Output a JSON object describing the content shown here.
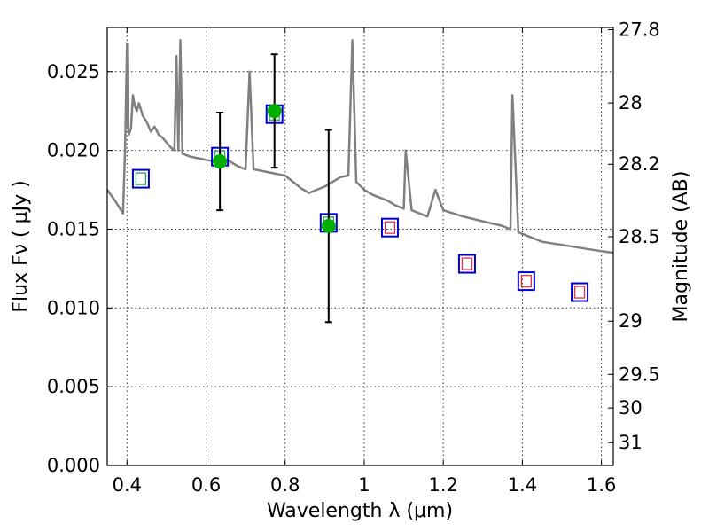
{
  "chart_data": {
    "type": "scatter",
    "xlabel": "Wavelength  λ (μm)",
    "ylabel": "Flux  Fν  ( μJy )",
    "ylabel_right": "Magnitude (AB)",
    "xlim": [
      0.35,
      1.63
    ],
    "ylim": [
      0.0,
      0.0278
    ],
    "x_ticks": [
      0.4,
      0.6,
      0.8,
      1.0,
      1.2,
      1.4,
      1.6
    ],
    "x_tick_labels": [
      "0.4",
      "0.6",
      "0.8",
      "1",
      "1.2",
      "1.4",
      "1.6"
    ],
    "y_ticks": [
      0.0,
      0.005,
      0.01,
      0.015,
      0.02,
      0.025
    ],
    "y_tick_labels": [
      "0.000",
      "0.005",
      "0.010",
      "0.015",
      "0.020",
      "0.025"
    ],
    "right_ticks": [
      {
        "flux": 0.02766,
        "label": "27.8"
      },
      {
        "flux": 0.02301,
        "label": "28"
      },
      {
        "flux": 0.01912,
        "label": "28.2"
      },
      {
        "flux": 0.01452,
        "label": "28.5"
      },
      {
        "flux": 0.00916,
        "label": "29"
      },
      {
        "flux": 0.00578,
        "label": "29.5"
      },
      {
        "flux": 0.00365,
        "label": "30"
      },
      {
        "flux": 0.00145,
        "label": "31"
      }
    ],
    "grid": true,
    "colors": {
      "spectrum": "#808080",
      "observed": "#00b000",
      "model_box": "#0000cc",
      "inner_box_green": "#30a060",
      "inner_box_red": "#e0304a",
      "errorbar": "#000000"
    },
    "series": [
      {
        "kind": "spectrum",
        "x": [
          0.35,
          0.37,
          0.39,
          0.395,
          0.4,
          0.402,
          0.405,
          0.41,
          0.415,
          0.42,
          0.425,
          0.43,
          0.44,
          0.45,
          0.46,
          0.47,
          0.48,
          0.49,
          0.5,
          0.51,
          0.52,
          0.525,
          0.53,
          0.535,
          0.54,
          0.55,
          0.56,
          0.58,
          0.6,
          0.62,
          0.64,
          0.65,
          0.66,
          0.68,
          0.7,
          0.71,
          0.72,
          0.74,
          0.76,
          0.78,
          0.8,
          0.82,
          0.84,
          0.86,
          0.88,
          0.9,
          0.92,
          0.94,
          0.96,
          0.97,
          0.98,
          1.0,
          1.02,
          1.04,
          1.06,
          1.08,
          1.1,
          1.105,
          1.12,
          1.14,
          1.16,
          1.18,
          1.2,
          1.25,
          1.3,
          1.35,
          1.37,
          1.375,
          1.39,
          1.42,
          1.45,
          1.5,
          1.55,
          1.6,
          1.63
        ],
        "y": [
          0.0175,
          0.0168,
          0.016,
          0.02,
          0.0268,
          0.0215,
          0.021,
          0.0214,
          0.0235,
          0.0228,
          0.0225,
          0.023,
          0.0222,
          0.0218,
          0.0212,
          0.0215,
          0.021,
          0.0208,
          0.0205,
          0.0202,
          0.02,
          0.026,
          0.02,
          0.027,
          0.0198,
          0.0197,
          0.0196,
          0.0195,
          0.0194,
          0.0193,
          0.0195,
          0.0194,
          0.0193,
          0.019,
          0.0188,
          0.025,
          0.0188,
          0.0187,
          0.0186,
          0.0185,
          0.0184,
          0.018,
          0.0176,
          0.0173,
          0.0175,
          0.0177,
          0.018,
          0.0183,
          0.0184,
          0.027,
          0.018,
          0.0175,
          0.0172,
          0.017,
          0.0168,
          0.0165,
          0.0163,
          0.02,
          0.0162,
          0.016,
          0.0158,
          0.0175,
          0.0162,
          0.0158,
          0.0155,
          0.0152,
          0.015,
          0.0235,
          0.0148,
          0.0145,
          0.0142,
          0.014,
          0.0138,
          0.0136,
          0.0135
        ]
      },
      {
        "kind": "observed",
        "x": [
          0.635,
          0.773,
          0.91
        ],
        "y": [
          0.0193,
          0.0225,
          0.0152
        ],
        "err": [
          0.0031,
          0.0036,
          0.0061
        ]
      },
      {
        "kind": "model",
        "x": [
          0.435,
          0.635,
          0.773,
          0.91,
          1.065,
          1.26,
          1.41,
          1.545
        ],
        "y": [
          0.0182,
          0.0196,
          0.0223,
          0.0154,
          0.0151,
          0.0128,
          0.0117,
          0.011
        ],
        "inner": [
          "green",
          "green",
          "green",
          "green",
          "red",
          "red",
          "red",
          "red"
        ]
      }
    ]
  }
}
